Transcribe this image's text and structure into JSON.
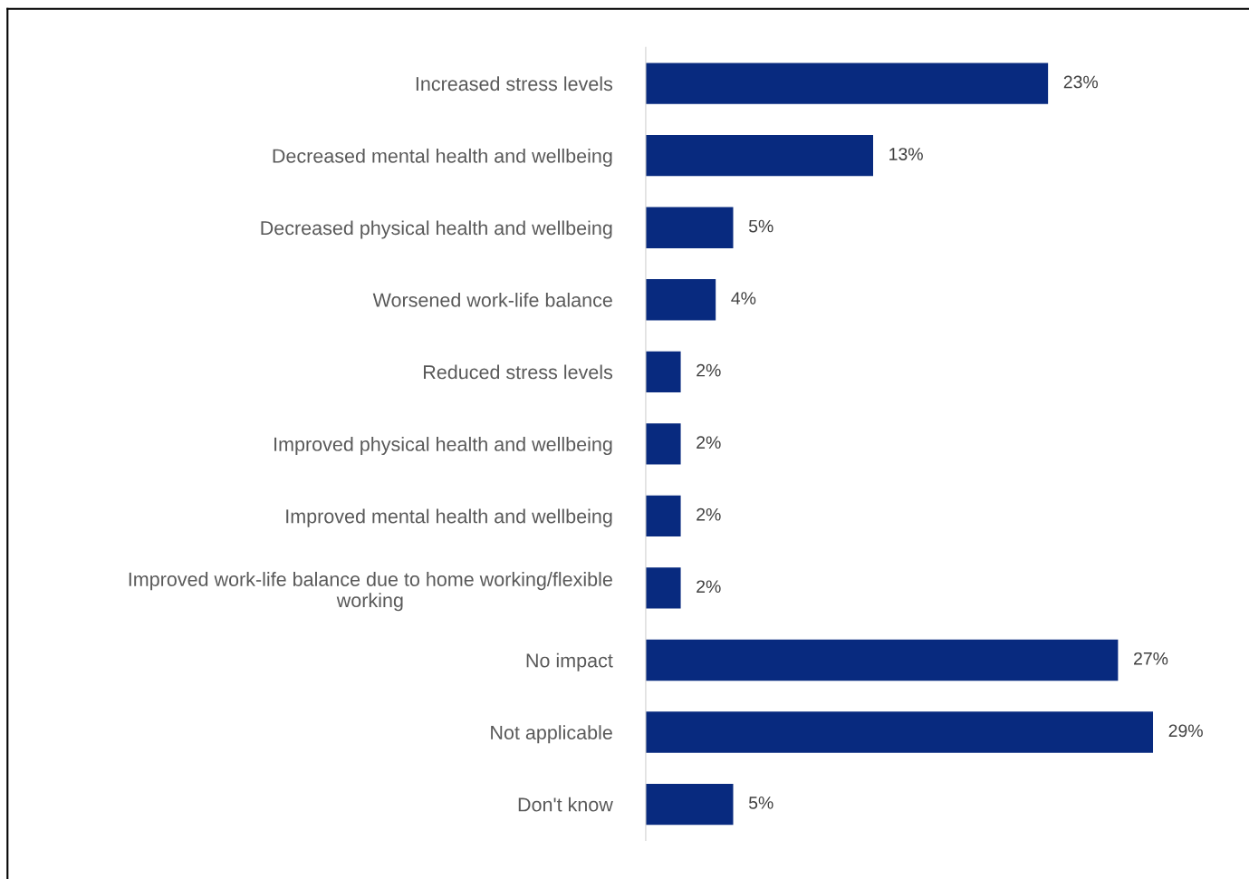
{
  "chart_data": {
    "type": "bar",
    "orientation": "horizontal",
    "categories": [
      "Increased stress levels",
      "Decreased mental health and wellbeing",
      "Decreased physical health and wellbeing",
      "Worsened work-life balance",
      "Reduced stress levels",
      "Improved physical health and wellbeing",
      "Improved mental health and wellbeing",
      "Improved work-life balance due to home working/flexible working",
      "No impact",
      "Not applicable",
      "Don't know"
    ],
    "values": [
      23,
      13,
      5,
      4,
      2,
      2,
      2,
      2,
      27,
      29,
      5
    ],
    "value_labels": [
      "23%",
      "13%",
      "5%",
      "4%",
      "2%",
      "2%",
      "2%",
      "2%",
      "27%",
      "29%",
      "5%"
    ],
    "color": "#082a7f",
    "grid": false,
    "legend": false
  }
}
